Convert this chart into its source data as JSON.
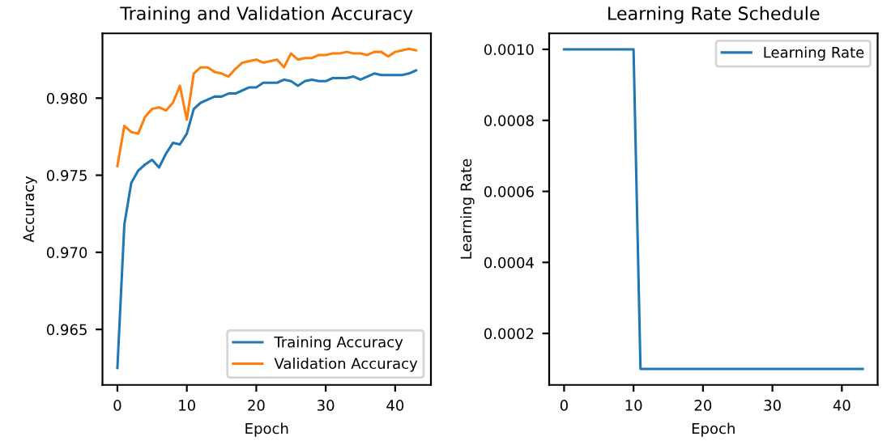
{
  "chart_data": [
    {
      "type": "line",
      "title": "Training and Validation Accuracy",
      "xlabel": "Epoch",
      "ylabel": "Accuracy",
      "x": [
        0,
        1,
        2,
        3,
        4,
        5,
        6,
        7,
        8,
        9,
        10,
        11,
        12,
        13,
        14,
        15,
        16,
        17,
        18,
        19,
        20,
        21,
        22,
        23,
        24,
        25,
        26,
        27,
        28,
        29,
        30,
        31,
        32,
        33,
        34,
        35,
        36,
        37,
        38,
        39,
        40,
        41,
        42,
        43
      ],
      "series": [
        {
          "name": "Training Accuracy",
          "color": "#1f77b4",
          "values": [
            0.9625,
            0.9718,
            0.9745,
            0.9753,
            0.9757,
            0.976,
            0.9755,
            0.9764,
            0.9771,
            0.977,
            0.9777,
            0.9793,
            0.9797,
            0.9799,
            0.9801,
            0.9801,
            0.9803,
            0.9803,
            0.9805,
            0.9807,
            0.9807,
            0.981,
            0.981,
            0.981,
            0.9812,
            0.9811,
            0.9808,
            0.9811,
            0.9812,
            0.9811,
            0.9811,
            0.9813,
            0.9813,
            0.9813,
            0.9814,
            0.9812,
            0.9814,
            0.9816,
            0.9815,
            0.9815,
            0.9815,
            0.9815,
            0.9816,
            0.9818
          ]
        },
        {
          "name": "Validation Accuracy",
          "color": "#ff7f0e",
          "values": [
            0.9756,
            0.9782,
            0.9778,
            0.9777,
            0.9788,
            0.9793,
            0.9794,
            0.9792,
            0.9797,
            0.9808,
            0.9786,
            0.9816,
            0.982,
            0.982,
            0.9817,
            0.9816,
            0.9814,
            0.9819,
            0.9823,
            0.9824,
            0.9825,
            0.9823,
            0.9824,
            0.9825,
            0.982,
            0.9829,
            0.9825,
            0.9826,
            0.9826,
            0.9828,
            0.9828,
            0.9829,
            0.9829,
            0.983,
            0.9829,
            0.9829,
            0.9828,
            0.983,
            0.983,
            0.9827,
            0.983,
            0.9831,
            0.9832,
            0.9831
          ]
        }
      ],
      "xlim": [
        -2.15,
        45.15
      ],
      "xticks": [
        0,
        10,
        20,
        30,
        40
      ],
      "ylim": [
        0.9614,
        0.9842
      ],
      "yticks": [
        {
          "value": 0.965,
          "label": "0.965"
        },
        {
          "value": 0.97,
          "label": "0.970"
        },
        {
          "value": 0.975,
          "label": "0.975"
        },
        {
          "value": 0.98,
          "label": "0.980"
        }
      ],
      "legend": "bottom right",
      "grid": false
    },
    {
      "type": "line",
      "title": "Learning Rate Schedule",
      "xlabel": "Epoch",
      "ylabel": "Learning Rate",
      "x": [
        0,
        1,
        2,
        3,
        4,
        5,
        6,
        7,
        8,
        9,
        10,
        11,
        12,
        13,
        14,
        15,
        16,
        17,
        18,
        19,
        20,
        21,
        22,
        23,
        24,
        25,
        26,
        27,
        28,
        29,
        30,
        31,
        32,
        33,
        34,
        35,
        36,
        37,
        38,
        39,
        40,
        41,
        42,
        43
      ],
      "series": [
        {
          "name": "Learning Rate",
          "color": "#1f77b4",
          "values": [
            0.001,
            0.001,
            0.001,
            0.001,
            0.001,
            0.001,
            0.001,
            0.001,
            0.001,
            0.001,
            0.001,
            0.0001,
            0.0001,
            0.0001,
            0.0001,
            0.0001,
            0.0001,
            0.0001,
            0.0001,
            0.0001,
            0.0001,
            0.0001,
            0.0001,
            0.0001,
            0.0001,
            0.0001,
            0.0001,
            0.0001,
            0.0001,
            0.0001,
            0.0001,
            0.0001,
            0.0001,
            0.0001,
            0.0001,
            0.0001,
            0.0001,
            0.0001,
            0.0001,
            0.0001,
            0.0001,
            0.0001,
            0.0001,
            0.0001
          ]
        }
      ],
      "xlim": [
        -2.15,
        45.15
      ],
      "xticks": [
        0,
        10,
        20,
        30,
        40
      ],
      "ylim": [
        5.5e-05,
        0.001045
      ],
      "yticks": [
        {
          "value": 0.0002,
          "label": "0.0002"
        },
        {
          "value": 0.0004,
          "label": "0.0004"
        },
        {
          "value": 0.0006,
          "label": "0.0006"
        },
        {
          "value": 0.0008,
          "label": "0.0008"
        },
        {
          "value": 0.001,
          "label": "0.0010"
        }
      ],
      "legend": "top right",
      "grid": false
    }
  ]
}
